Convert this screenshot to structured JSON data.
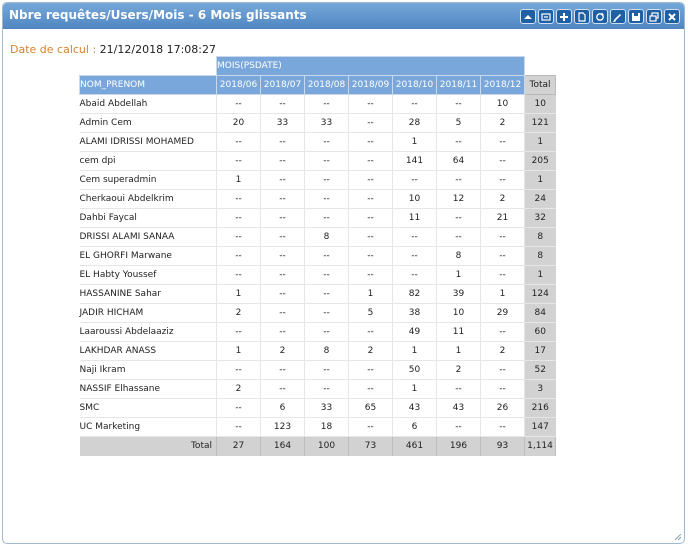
{
  "window": {
    "title": "Nbre requêtes/Users/Mois - 6 Mois glissants",
    "tools": [
      "collapse-icon",
      "filter-icon",
      "add-icon",
      "document-icon",
      "refresh-icon",
      "edit-icon",
      "save-icon",
      "restore-icon",
      "close-icon"
    ]
  },
  "calc": {
    "label": "Date de calcul",
    "sep": " : ",
    "value": "21/12/2018 17:08:27"
  },
  "table": {
    "mois_header": "MOIS(PSDATE)",
    "row_header": "NOM_PRENOM",
    "months": [
      "2018/06",
      "2018/07",
      "2018/08",
      "2018/09",
      "2018/10",
      "2018/11",
      "2018/12"
    ],
    "total_header": "Total",
    "rows": [
      {
        "name": "Abaid Abdellah",
        "values": [
          "--",
          "--",
          "--",
          "--",
          "--",
          "--",
          "10"
        ],
        "total": "10"
      },
      {
        "name": "Admin Cem",
        "values": [
          "20",
          "33",
          "33",
          "--",
          "28",
          "5",
          "2"
        ],
        "total": "121"
      },
      {
        "name": "ALAMI IDRISSI MOHAMED",
        "values": [
          "--",
          "--",
          "--",
          "--",
          "1",
          "--",
          "--"
        ],
        "total": "1"
      },
      {
        "name": "cem dpi",
        "values": [
          "--",
          "--",
          "--",
          "--",
          "141",
          "64",
          "--"
        ],
        "total": "205"
      },
      {
        "name": "Cem superadmin",
        "values": [
          "1",
          "--",
          "--",
          "--",
          "--",
          "--",
          "--"
        ],
        "total": "1"
      },
      {
        "name": "Cherkaoui Abdelkrim",
        "values": [
          "--",
          "--",
          "--",
          "--",
          "10",
          "12",
          "2"
        ],
        "total": "24"
      },
      {
        "name": "Dahbi Faycal",
        "values": [
          "--",
          "--",
          "--",
          "--",
          "11",
          "--",
          "21"
        ],
        "total": "32"
      },
      {
        "name": "DRISSI ALAMI SANAA",
        "values": [
          "--",
          "--",
          "8",
          "--",
          "--",
          "--",
          "--"
        ],
        "total": "8"
      },
      {
        "name": "EL GHORFI Marwane",
        "values": [
          "--",
          "--",
          "--",
          "--",
          "--",
          "8",
          "--"
        ],
        "total": "8"
      },
      {
        "name": "EL Habty Youssef",
        "values": [
          "--",
          "--",
          "--",
          "--",
          "--",
          "1",
          "--"
        ],
        "total": "1"
      },
      {
        "name": "HASSANINE Sahar",
        "values": [
          "1",
          "--",
          "--",
          "1",
          "82",
          "39",
          "1"
        ],
        "total": "124"
      },
      {
        "name": "JADIR HICHAM",
        "values": [
          "2",
          "--",
          "--",
          "5",
          "38",
          "10",
          "29"
        ],
        "total": "84"
      },
      {
        "name": "Laaroussi Abdelaaziz",
        "values": [
          "--",
          "--",
          "--",
          "--",
          "49",
          "11",
          "--"
        ],
        "total": "60"
      },
      {
        "name": "LAKHDAR ANASS",
        "values": [
          "1",
          "2",
          "8",
          "2",
          "1",
          "1",
          "2"
        ],
        "total": "17"
      },
      {
        "name": "Naji Ikram",
        "values": [
          "--",
          "--",
          "--",
          "--",
          "50",
          "2",
          "--"
        ],
        "total": "52"
      },
      {
        "name": "NASSIF Elhassane",
        "values": [
          "2",
          "--",
          "--",
          "--",
          "1",
          "--",
          "--"
        ],
        "total": "3"
      },
      {
        "name": "SMC",
        "values": [
          "--",
          "6",
          "33",
          "65",
          "43",
          "43",
          "26"
        ],
        "total": "216"
      },
      {
        "name": "UC Marketing",
        "values": [
          "--",
          "123",
          "18",
          "--",
          "6",
          "--",
          "--"
        ],
        "total": "147"
      }
    ],
    "totals_label": "Total",
    "totals": [
      "27",
      "164",
      "100",
      "73",
      "461",
      "196",
      "93"
    ],
    "grand_total": "1,114"
  }
}
